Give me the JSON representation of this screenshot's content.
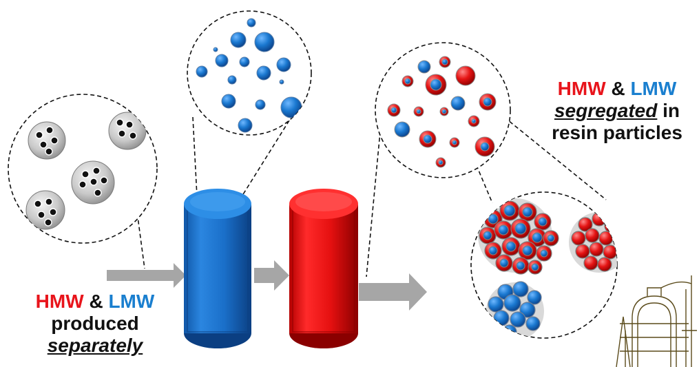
{
  "left_caption": {
    "hmw": "HMW",
    "amp": "&",
    "lmw": "LMW",
    "line2": "produced",
    "line3": "separately"
  },
  "right_caption": {
    "hmw": "HMW",
    "amp": "&",
    "lmw": "LMW",
    "line2_emph": "segregated",
    "line2_rest": "in",
    "line3": "resin particles"
  },
  "colors": {
    "hmw_red": "#e8141b",
    "lmw_blue": "#1a7fcf",
    "arrow_gray": "#a6a6a6",
    "reactor1": "#1a6fc9",
    "reactor2": "#e01010"
  },
  "icons": [
    "catalyst-particle-icon",
    "lmw-particle-icon",
    "hmw-lmw-particle-icon",
    "resin-cluster-icon",
    "plant-icon"
  ]
}
